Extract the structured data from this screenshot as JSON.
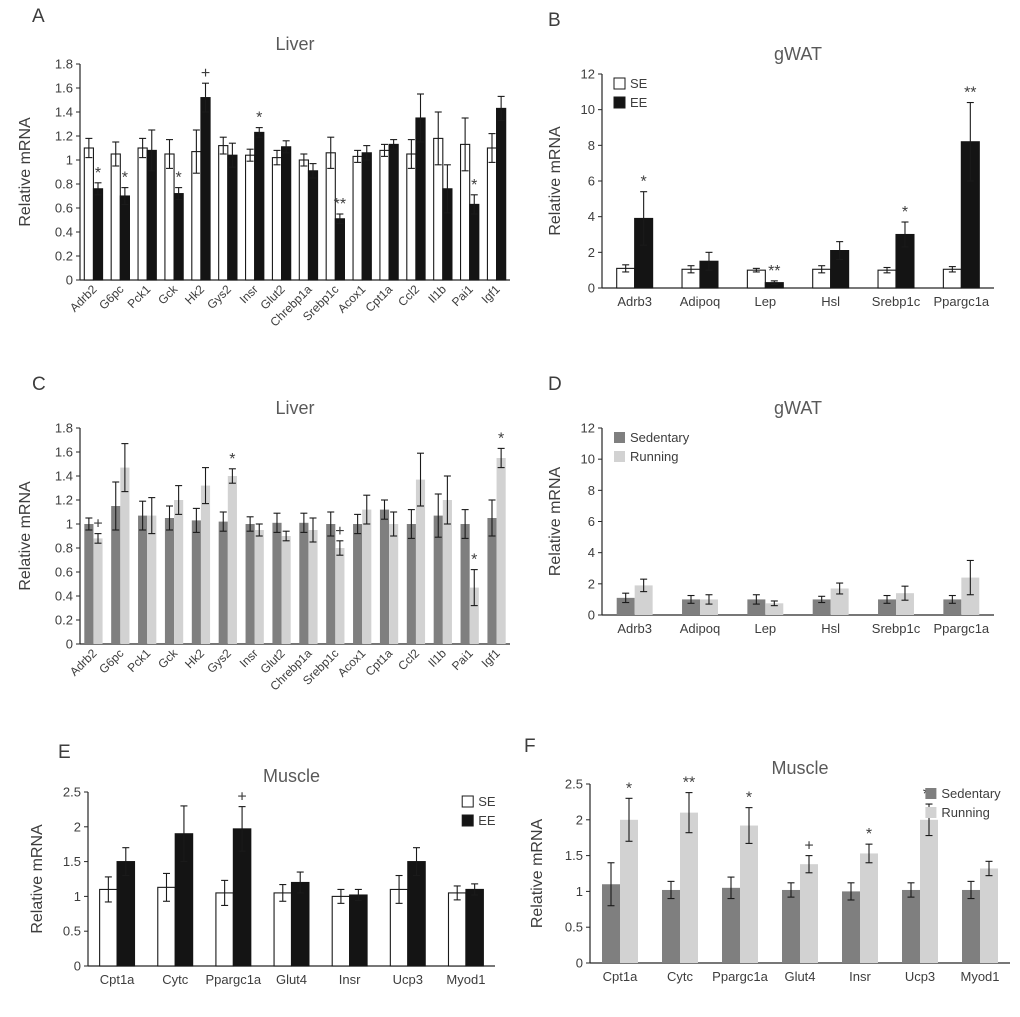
{
  "figure": {
    "panel_labels": [
      "A",
      "B",
      "C",
      "D",
      "E",
      "F"
    ]
  },
  "colors": {
    "se_fill": "#ffffff",
    "ee_fill": "#141414",
    "sedentary_fill": "#7f7f7f",
    "running_fill": "#d2d2d2",
    "axis": "#262626",
    "text": "#3d3d3d",
    "title": "#595959"
  },
  "chart_data": [
    {
      "type": "bar",
      "panel": "A",
      "title": "Liver",
      "ylabel": "Relative mRNA",
      "ylim": [
        0,
        1.8
      ],
      "ytick_step": 0.2,
      "grid": false,
      "x_tick_rotation": -45,
      "categories": [
        "Adrb2",
        "G6pc",
        "Pck1",
        "Gck",
        "Hk2",
        "Gys2",
        "Insr",
        "Glut2",
        "Chrebp1a",
        "Srebp1c",
        "Acox1",
        "Cpt1a",
        "Ccl2",
        "Il1b",
        "Pai1",
        "Igf1"
      ],
      "series": [
        {
          "name": "SE",
          "fill": "#ffffff",
          "stroke": "#1a1a1a",
          "values": [
            1.1,
            1.05,
            1.1,
            1.05,
            1.07,
            1.12,
            1.04,
            1.02,
            1.0,
            1.06,
            1.03,
            1.08,
            1.05,
            1.18,
            1.13,
            1.1
          ],
          "errors": [
            0.08,
            0.1,
            0.08,
            0.12,
            0.18,
            0.07,
            0.05,
            0.06,
            0.05,
            0.13,
            0.05,
            0.05,
            0.12,
            0.22,
            0.22,
            0.12
          ]
        },
        {
          "name": "EE",
          "fill": "#141414",
          "stroke": "#141414",
          "values": [
            0.76,
            0.7,
            1.08,
            0.72,
            1.52,
            1.04,
            1.23,
            1.11,
            0.91,
            0.51,
            1.06,
            1.13,
            1.35,
            0.76,
            0.63,
            1.43
          ],
          "errors": [
            0.05,
            0.07,
            0.17,
            0.05,
            0.12,
            0.1,
            0.04,
            0.05,
            0.06,
            0.04,
            0.06,
            0.04,
            0.2,
            0.2,
            0.08,
            0.1
          ]
        }
      ],
      "annotations": [
        {
          "category": "Adrb2",
          "series": "EE",
          "text": "*"
        },
        {
          "category": "G6pc",
          "series": "EE",
          "text": "*"
        },
        {
          "category": "Gck",
          "series": "EE",
          "text": "*"
        },
        {
          "category": "Hk2",
          "series": "EE",
          "text": "+"
        },
        {
          "category": "Insr",
          "series": "EE",
          "text": "*"
        },
        {
          "category": "Srebp1c",
          "series": "EE",
          "text": "**"
        },
        {
          "category": "Pai1",
          "series": "EE",
          "text": "*"
        }
      ],
      "legend": {
        "show": false,
        "position": "top-left"
      }
    },
    {
      "type": "bar",
      "panel": "B",
      "title": "gWAT",
      "ylabel": "Relative mRNA",
      "ylim": [
        0,
        12
      ],
      "ytick_step": 2,
      "grid": false,
      "x_tick_rotation": 0,
      "categories": [
        "Adrb3",
        "Adipoq",
        "Lep",
        "Hsl",
        "Srebp1c",
        "Ppargc1a"
      ],
      "series": [
        {
          "name": "SE",
          "fill": "#ffffff",
          "stroke": "#1a1a1a",
          "values": [
            1.1,
            1.05,
            1.0,
            1.05,
            1.0,
            1.05
          ],
          "errors": [
            0.2,
            0.2,
            0.1,
            0.2,
            0.15,
            0.15
          ]
        },
        {
          "name": "EE",
          "fill": "#141414",
          "stroke": "#141414",
          "values": [
            3.9,
            1.5,
            0.3,
            2.1,
            3.0,
            8.2
          ],
          "errors": [
            1.5,
            0.5,
            0.1,
            0.5,
            0.7,
            2.2
          ]
        }
      ],
      "annotations": [
        {
          "category": "Adrb3",
          "series": "EE",
          "text": "*"
        },
        {
          "category": "Lep",
          "series": "EE",
          "text": "**"
        },
        {
          "category": "Srebp1c",
          "series": "EE",
          "text": "*"
        },
        {
          "category": "Ppargc1a",
          "series": "EE",
          "text": "**"
        }
      ],
      "legend": {
        "show": true,
        "position": "top-left"
      }
    },
    {
      "type": "bar",
      "panel": "C",
      "title": "Liver",
      "ylabel": "Relative mRNA",
      "ylim": [
        0,
        1.8
      ],
      "ytick_step": 0.2,
      "grid": false,
      "x_tick_rotation": -45,
      "categories": [
        "Adrb2",
        "G6pc",
        "Pck1",
        "Gck",
        "Hk2",
        "Gys2",
        "Insr",
        "Glut2",
        "Chrebp1a",
        "Srebp1c",
        "Acox1",
        "Cpt1a",
        "Ccl2",
        "Il1b",
        "Pai1",
        "Igf1"
      ],
      "series": [
        {
          "name": "Sedentary",
          "fill": "#7f7f7f",
          "stroke": "none",
          "values": [
            1.0,
            1.15,
            1.07,
            1.05,
            1.03,
            1.02,
            1.0,
            1.01,
            1.01,
            1.0,
            1.0,
            1.12,
            1.0,
            1.07,
            1.0,
            1.05
          ],
          "errors": [
            0.05,
            0.2,
            0.12,
            0.1,
            0.1,
            0.08,
            0.06,
            0.08,
            0.08,
            0.1,
            0.08,
            0.08,
            0.12,
            0.18,
            0.12,
            0.15
          ]
        },
        {
          "name": "Running",
          "fill": "#d2d2d2",
          "stroke": "none",
          "values": [
            0.88,
            1.47,
            1.07,
            1.2,
            1.32,
            1.4,
            0.95,
            0.9,
            0.95,
            0.8,
            1.12,
            1.0,
            1.37,
            1.2,
            0.47,
            1.55
          ],
          "errors": [
            0.04,
            0.2,
            0.15,
            0.12,
            0.15,
            0.06,
            0.05,
            0.04,
            0.1,
            0.06,
            0.12,
            0.1,
            0.22,
            0.2,
            0.15,
            0.08
          ]
        }
      ],
      "annotations": [
        {
          "category": "Adrb2",
          "series": "Running",
          "text": "+"
        },
        {
          "category": "Gys2",
          "series": "Running",
          "text": "*"
        },
        {
          "category": "Srebp1c",
          "series": "Running",
          "text": "+"
        },
        {
          "category": "Pai1",
          "series": "Running",
          "text": "*"
        },
        {
          "category": "Igf1",
          "series": "Running",
          "text": "*"
        }
      ],
      "legend": {
        "show": false,
        "position": "top-left"
      }
    },
    {
      "type": "bar",
      "panel": "D",
      "title": "gWAT",
      "ylabel": "Relative mRNA",
      "ylim": [
        0,
        12
      ],
      "ytick_step": 2,
      "grid": false,
      "x_tick_rotation": 0,
      "categories": [
        "Adrb3",
        "Adipoq",
        "Lep",
        "Hsl",
        "Srebp1c",
        "Ppargc1a"
      ],
      "series": [
        {
          "name": "Sedentary",
          "fill": "#7f7f7f",
          "stroke": "none",
          "values": [
            1.1,
            1.0,
            1.0,
            1.0,
            1.0,
            1.0
          ],
          "errors": [
            0.3,
            0.25,
            0.3,
            0.2,
            0.25,
            0.25
          ]
        },
        {
          "name": "Running",
          "fill": "#d2d2d2",
          "stroke": "none",
          "values": [
            1.9,
            1.0,
            0.75,
            1.7,
            1.4,
            2.4
          ],
          "errors": [
            0.4,
            0.3,
            0.15,
            0.35,
            0.45,
            1.1
          ]
        }
      ],
      "annotations": [],
      "legend": {
        "show": true,
        "position": "top-left"
      }
    },
    {
      "type": "bar",
      "panel": "E",
      "title": "Muscle",
      "ylabel": "Relative mRNA",
      "ylim": [
        0,
        2.5
      ],
      "ytick_step": 0.5,
      "grid": false,
      "x_tick_rotation": 0,
      "categories": [
        "Cpt1a",
        "Cytc",
        "Ppargc1a",
        "Glut4",
        "Insr",
        "Ucp3",
        "Myod1"
      ],
      "series": [
        {
          "name": "SE",
          "fill": "#ffffff",
          "stroke": "#1a1a1a",
          "values": [
            1.1,
            1.13,
            1.05,
            1.05,
            1.0,
            1.1,
            1.05
          ],
          "errors": [
            0.18,
            0.2,
            0.18,
            0.12,
            0.1,
            0.2,
            0.1
          ]
        },
        {
          "name": "EE",
          "fill": "#141414",
          "stroke": "#141414",
          "values": [
            1.5,
            1.9,
            1.97,
            1.2,
            1.02,
            1.5,
            1.1
          ],
          "errors": [
            0.2,
            0.4,
            0.32,
            0.15,
            0.08,
            0.2,
            0.08
          ]
        }
      ],
      "annotations": [
        {
          "category": "Ppargc1a",
          "series": "EE",
          "text": "+"
        }
      ],
      "legend": {
        "show": true,
        "position": "top-right"
      }
    },
    {
      "type": "bar",
      "panel": "F",
      "title": "Muscle",
      "ylabel": "Relative mRNA",
      "ylim": [
        0,
        2.5
      ],
      "ytick_step": 0.5,
      "grid": false,
      "x_tick_rotation": 0,
      "categories": [
        "Cpt1a",
        "Cytc",
        "Ppargc1a",
        "Glut4",
        "Insr",
        "Ucp3",
        "Myod1"
      ],
      "series": [
        {
          "name": "Sedentary",
          "fill": "#7f7f7f",
          "stroke": "none",
          "values": [
            1.1,
            1.02,
            1.05,
            1.02,
            1.0,
            1.02,
            1.02
          ],
          "errors": [
            0.3,
            0.12,
            0.15,
            0.1,
            0.12,
            0.1,
            0.12
          ]
        },
        {
          "name": "Running",
          "fill": "#d2d2d2",
          "stroke": "none",
          "values": [
            2.0,
            2.1,
            1.92,
            1.38,
            1.53,
            2.0,
            1.32
          ],
          "errors": [
            0.3,
            0.28,
            0.25,
            0.12,
            0.13,
            0.22,
            0.1
          ]
        }
      ],
      "annotations": [
        {
          "category": "Cpt1a",
          "series": "Running",
          "text": "*"
        },
        {
          "category": "Cytc",
          "series": "Running",
          "text": "**"
        },
        {
          "category": "Ppargc1a",
          "series": "Running",
          "text": "*"
        },
        {
          "category": "Glut4",
          "series": "Running",
          "text": "+"
        },
        {
          "category": "Insr",
          "series": "Running",
          "text": "*"
        },
        {
          "category": "Ucp3",
          "series": "Running",
          "text": "**"
        }
      ],
      "legend": {
        "show": true,
        "position": "top-right"
      }
    }
  ]
}
